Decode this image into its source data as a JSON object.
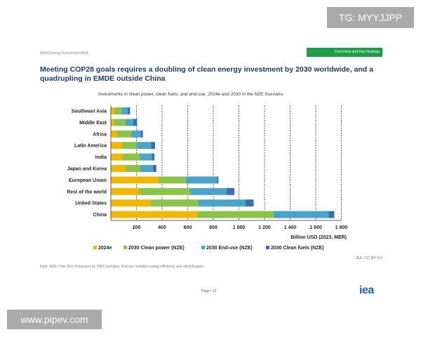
{
  "header": {
    "report_name": "World Energy Investment 2024",
    "section_tab": "Overview and key findings",
    "headline": "Meeting COP28 goals requires a doubling of clean energy investment by 2030 worldwide, and a quadrupling in EMDE outside China"
  },
  "footer": {
    "note": "Note: NZE = Net Zero Emissions by 2050 Scenario. End use includes energy efficiency and electrification.",
    "credit": "IEA. CC BY 4.0",
    "page": "Page | 20",
    "logo": "iea"
  },
  "overlays": {
    "telegram": "TG: MYYJJPP",
    "website": "www.pipev.com"
  },
  "chart_data": {
    "type": "bar",
    "orientation": "horizontal",
    "stacked": true,
    "title": "Investments in clean power, clean fuels, and end use, 2024e and 2030 in the NZE Scenario",
    "xlabel": "Billion USD (2023, MER)",
    "xlim": [
      0,
      1800
    ],
    "xticks": [
      200,
      400,
      600,
      800,
      1000,
      1200,
      1400,
      1600,
      1800
    ],
    "xtick_labels": [
      "200",
      "400",
      "600",
      "800",
      "1 000",
      "1 200",
      "1 400",
      "1 600",
      "1 800"
    ],
    "categories": [
      "Southeast Asia",
      "Middle East",
      "Africa",
      "Latin America",
      "India",
      "Japan and Korea",
      "European Union",
      "Rest of the world",
      "United States",
      "China"
    ],
    "series": [
      {
        "name": "2024e",
        "color": "#f2b705",
        "values": [
          30,
          25,
          45,
          85,
          90,
          115,
          375,
          220,
          310,
          675
        ]
      },
      {
        "name": "2030 Clean power (NZE)",
        "color": "#8bc34a",
        "values": [
          55,
          90,
          115,
          115,
          135,
          115,
          210,
          400,
          375,
          595
        ]
      },
      {
        "name": "2030 End-use (NZE)",
        "color": "#4aa3c9",
        "values": [
          45,
          60,
          75,
          115,
          95,
          100,
          245,
          280,
          365,
          430
        ]
      },
      {
        "name": "2030 Clean fuels (NZE)",
        "color": "#3d6fb0",
        "values": [
          20,
          30,
          15,
          30,
          20,
          25,
          10,
          65,
          65,
          45
        ]
      }
    ],
    "legend": "bottom",
    "grid": "vertical dashed"
  }
}
